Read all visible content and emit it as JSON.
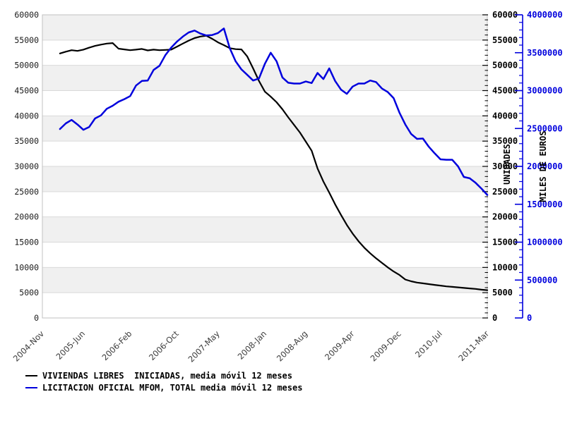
{
  "chart_data": {
    "type": "line",
    "title": "",
    "x_axis": {
      "start_label": "2004-Nov",
      "end_label": "2011-Mar",
      "range_months": 76,
      "ticks": [
        {
          "label": "2004-Nov",
          "month": 0
        },
        {
          "label": "2005-Jun",
          "month": 7
        },
        {
          "label": "2006-Feb",
          "month": 15
        },
        {
          "label": "2006-Oct",
          "month": 23
        },
        {
          "label": "2007-May",
          "month": 30
        },
        {
          "label": "2008-Jan",
          "month": 38
        },
        {
          "label": "2008-Aug",
          "month": 45
        },
        {
          "label": "2009-Apr",
          "month": 53
        },
        {
          "label": "2009-Dec",
          "month": 61
        },
        {
          "label": "2010-Jul",
          "month": 68
        },
        {
          "label": "2011-Mar",
          "month": 76
        }
      ]
    },
    "left_axis": {
      "max": 60000,
      "min": 0,
      "tick_labels": [
        "60000",
        "55000",
        "50000",
        "45000",
        "40000",
        "35000",
        "30000",
        "25000",
        "20000",
        "15000",
        "10000",
        "5000",
        "0"
      ]
    },
    "right_axis_units": {
      "title": "UNIDADES",
      "max": 60000,
      "min": 0,
      "minor_divisions": 60,
      "tick_labels": [
        "60000",
        "55000",
        "50000",
        "45000",
        "40000",
        "35000",
        "30000",
        "25000",
        "20000",
        "15000",
        "10000",
        "5000",
        "0"
      ]
    },
    "right_axis_euros": {
      "title": "MILES DE EUROS",
      "max": 4000000,
      "min": 0,
      "minor_divisions": 40,
      "tick_labels": [
        "4000000",
        "3500000",
        "3000000",
        "2500000",
        "2000000",
        "1500000",
        "1000000",
        "500000",
        "0"
      ]
    },
    "colors": {
      "band": "#f0f0f0",
      "grid": "#d9d9d9",
      "spine": "#c0c0c0",
      "black_series": "#000000",
      "blue_series": "#0000dd"
    },
    "categories": [
      "2005-Feb",
      "2005-Mar",
      "2005-Apr",
      "2005-May",
      "2005-Jun",
      "2005-Jul",
      "2005-Aug",
      "2005-Sep",
      "2005-Oct",
      "2005-Nov",
      "2005-Dec",
      "2006-Jan",
      "2006-Feb",
      "2006-Mar",
      "2006-Apr",
      "2006-May",
      "2006-Jun",
      "2006-Jul",
      "2006-Aug",
      "2006-Sep",
      "2006-Oct",
      "2006-Nov",
      "2006-Dec",
      "2007-Jan",
      "2007-Feb",
      "2007-Mar",
      "2007-Apr",
      "2007-May",
      "2007-Jun",
      "2007-Jul",
      "2007-Aug",
      "2007-Sep",
      "2007-Oct",
      "2007-Nov",
      "2007-Dec",
      "2008-Jan",
      "2008-Feb",
      "2008-Mar",
      "2008-Apr",
      "2008-May",
      "2008-Jun",
      "2008-Jul",
      "2008-Aug",
      "2008-Sep",
      "2008-Oct",
      "2008-Nov",
      "2008-Dec",
      "2009-Jan",
      "2009-Feb",
      "2009-Mar",
      "2009-Apr",
      "2009-May",
      "2009-Jun",
      "2009-Jul",
      "2009-Aug",
      "2009-Sep",
      "2009-Oct",
      "2009-Nov",
      "2009-Dec",
      "2010-Jan",
      "2010-Feb",
      "2010-Mar",
      "2010-Apr",
      "2010-May",
      "2010-Jun",
      "2010-Jul",
      "2010-Aug",
      "2010-Sep",
      "2010-Oct",
      "2010-Nov",
      "2010-Dec",
      "2011-Jan",
      "2011-Feb",
      "2011-Mar"
    ],
    "series": [
      {
        "name": "VIVIENDAS LIBRES  INICIADAS, media móvil 12 meses",
        "color": "#000000",
        "width": 2.2,
        "axis": "units",
        "start_month": 3,
        "values": [
          52350,
          52700,
          53000,
          52850,
          53100,
          53500,
          53840,
          54100,
          54300,
          54400,
          53300,
          53150,
          53000,
          53100,
          53250,
          52950,
          53100,
          53000,
          53050,
          53100,
          53700,
          54300,
          54900,
          55400,
          55700,
          55850,
          55250,
          54550,
          54000,
          53400,
          53200,
          53150,
          51750,
          49400,
          46900,
          44800,
          43800,
          42700,
          41300,
          39700,
          38200,
          36700,
          34900,
          33100,
          29600,
          27000,
          24800,
          22500,
          20400,
          18400,
          16700,
          15200,
          13900,
          12800,
          11800,
          10900,
          10000,
          9200,
          8500,
          7600,
          7250,
          7000,
          6850,
          6700,
          6550,
          6400,
          6250,
          6150,
          6050,
          5950,
          5850,
          5750,
          5600,
          5500
        ]
      },
      {
        "name": "LICITACION OFICIAL MFOM, TOTAL media móvil 12 meses",
        "color": "#0000dd",
        "width": 2.5,
        "axis": "euros",
        "start_month": 3,
        "values": [
          2493000,
          2567000,
          2613000,
          2553000,
          2483000,
          2520000,
          2633000,
          2673000,
          2760000,
          2800000,
          2853000,
          2887000,
          2927000,
          3067000,
          3127000,
          3133000,
          3273000,
          3327000,
          3467000,
          3567000,
          3647000,
          3713000,
          3767000,
          3793000,
          3753000,
          3727000,
          3733000,
          3760000,
          3820000,
          3560000,
          3387000,
          3280000,
          3207000,
          3133000,
          3160000,
          3353000,
          3500000,
          3387000,
          3173000,
          3103000,
          3093000,
          3093000,
          3120000,
          3100000,
          3233000,
          3153000,
          3293000,
          3127000,
          3013000,
          2957000,
          3053000,
          3093000,
          3093000,
          3133000,
          3113000,
          3027000,
          2980000,
          2900000,
          2707000,
          2553000,
          2427000,
          2363000,
          2367000,
          2260000,
          2173000,
          2093000,
          2087000,
          2087000,
          2000000,
          1860000,
          1843000,
          1783000,
          1707000,
          1623000
        ]
      }
    ],
    "legend_position": "bottom-left",
    "grid": true
  }
}
